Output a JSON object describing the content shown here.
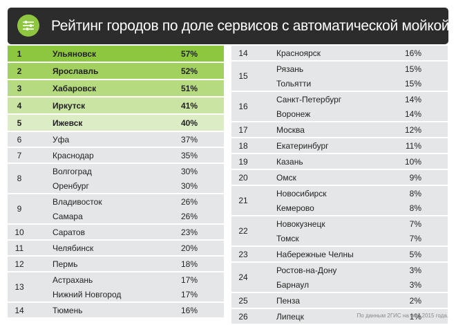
{
  "title": "Рейтинг городов по доле сервисов с автоматической мойкой",
  "header_icon": "sliders-icon",
  "colors": {
    "header_bg": "#2c2c2c",
    "icon_green": "#8ec63f",
    "row_gray": "#e5e6e7",
    "top_shades": [
      "#8dc63f",
      "#a3d160",
      "#b6da80",
      "#cae4a3",
      "#dcecc5"
    ]
  },
  "left_groups": [
    {
      "rank": "1",
      "entries": [
        {
          "city": "Ульяновск",
          "percent": "57%"
        }
      ]
    },
    {
      "rank": "2",
      "entries": [
        {
          "city": "Ярославль",
          "percent": "52%"
        }
      ]
    },
    {
      "rank": "3",
      "entries": [
        {
          "city": "Хабаровск",
          "percent": "51%"
        }
      ]
    },
    {
      "rank": "4",
      "entries": [
        {
          "city": "Иркутск",
          "percent": "41%"
        }
      ]
    },
    {
      "rank": "5",
      "entries": [
        {
          "city": "Ижевск",
          "percent": "40%"
        }
      ]
    },
    {
      "rank": "6",
      "entries": [
        {
          "city": "Уфа",
          "percent": "37%"
        }
      ]
    },
    {
      "rank": "7",
      "entries": [
        {
          "city": "Краснодар",
          "percent": "35%"
        }
      ]
    },
    {
      "rank": "8",
      "entries": [
        {
          "city": "Волгоград",
          "percent": "30%"
        },
        {
          "city": "Оренбург",
          "percent": "30%"
        }
      ]
    },
    {
      "rank": "9",
      "entries": [
        {
          "city": "Владивосток",
          "percent": "26%"
        },
        {
          "city": "Самара",
          "percent": "26%"
        }
      ]
    },
    {
      "rank": "10",
      "entries": [
        {
          "city": "Саратов",
          "percent": "23%"
        }
      ]
    },
    {
      "rank": "11",
      "entries": [
        {
          "city": "Челябинск",
          "percent": "20%"
        }
      ]
    },
    {
      "rank": "12",
      "entries": [
        {
          "city": "Пермь",
          "percent": "18%"
        }
      ]
    },
    {
      "rank": "13",
      "entries": [
        {
          "city": "Астрахань",
          "percent": "17%"
        },
        {
          "city": "Нижний Новгород",
          "percent": "17%"
        }
      ]
    },
    {
      "rank": "14",
      "entries": [
        {
          "city": "Тюмень",
          "percent": "16%"
        }
      ]
    }
  ],
  "right_groups": [
    {
      "rank": "14",
      "entries": [
        {
          "city": "Красноярск",
          "percent": "16%"
        }
      ]
    },
    {
      "rank": "15",
      "entries": [
        {
          "city": "Рязань",
          "percent": "15%"
        },
        {
          "city": "Тольятти",
          "percent": "15%"
        }
      ]
    },
    {
      "rank": "16",
      "entries": [
        {
          "city": "Санкт-Петербург",
          "percent": "14%"
        },
        {
          "city": "Воронеж",
          "percent": "14%"
        }
      ]
    },
    {
      "rank": "17",
      "entries": [
        {
          "city": "Москва",
          "percent": "12%"
        }
      ]
    },
    {
      "rank": "18",
      "entries": [
        {
          "city": "Екатеринбург",
          "percent": "11%"
        }
      ]
    },
    {
      "rank": "19",
      "entries": [
        {
          "city": "Казань",
          "percent": "10%"
        }
      ]
    },
    {
      "rank": "20",
      "entries": [
        {
          "city": "Омск",
          "percent": "9%"
        }
      ]
    },
    {
      "rank": "21",
      "entries": [
        {
          "city": "Новосибирск",
          "percent": "8%"
        },
        {
          "city": "Кемерово",
          "percent": "8%"
        }
      ]
    },
    {
      "rank": "22",
      "entries": [
        {
          "city": "Новокузнецк",
          "percent": "7%"
        },
        {
          "city": "Томск",
          "percent": "7%"
        }
      ]
    },
    {
      "rank": "23",
      "entries": [
        {
          "city": "Набережные Челны",
          "percent": "5%"
        }
      ]
    },
    {
      "rank": "24",
      "entries": [
        {
          "city": "Ростов-на-Дону",
          "percent": "3%"
        },
        {
          "city": "Барнаул",
          "percent": "3%"
        }
      ]
    },
    {
      "rank": "25",
      "entries": [
        {
          "city": "Пенза",
          "percent": "2%"
        }
      ]
    },
    {
      "rank": "26",
      "entries": [
        {
          "city": "Липецк",
          "percent": "1%"
        }
      ]
    }
  ],
  "footnote": "По данным 2ГИС на май 2015 года."
}
